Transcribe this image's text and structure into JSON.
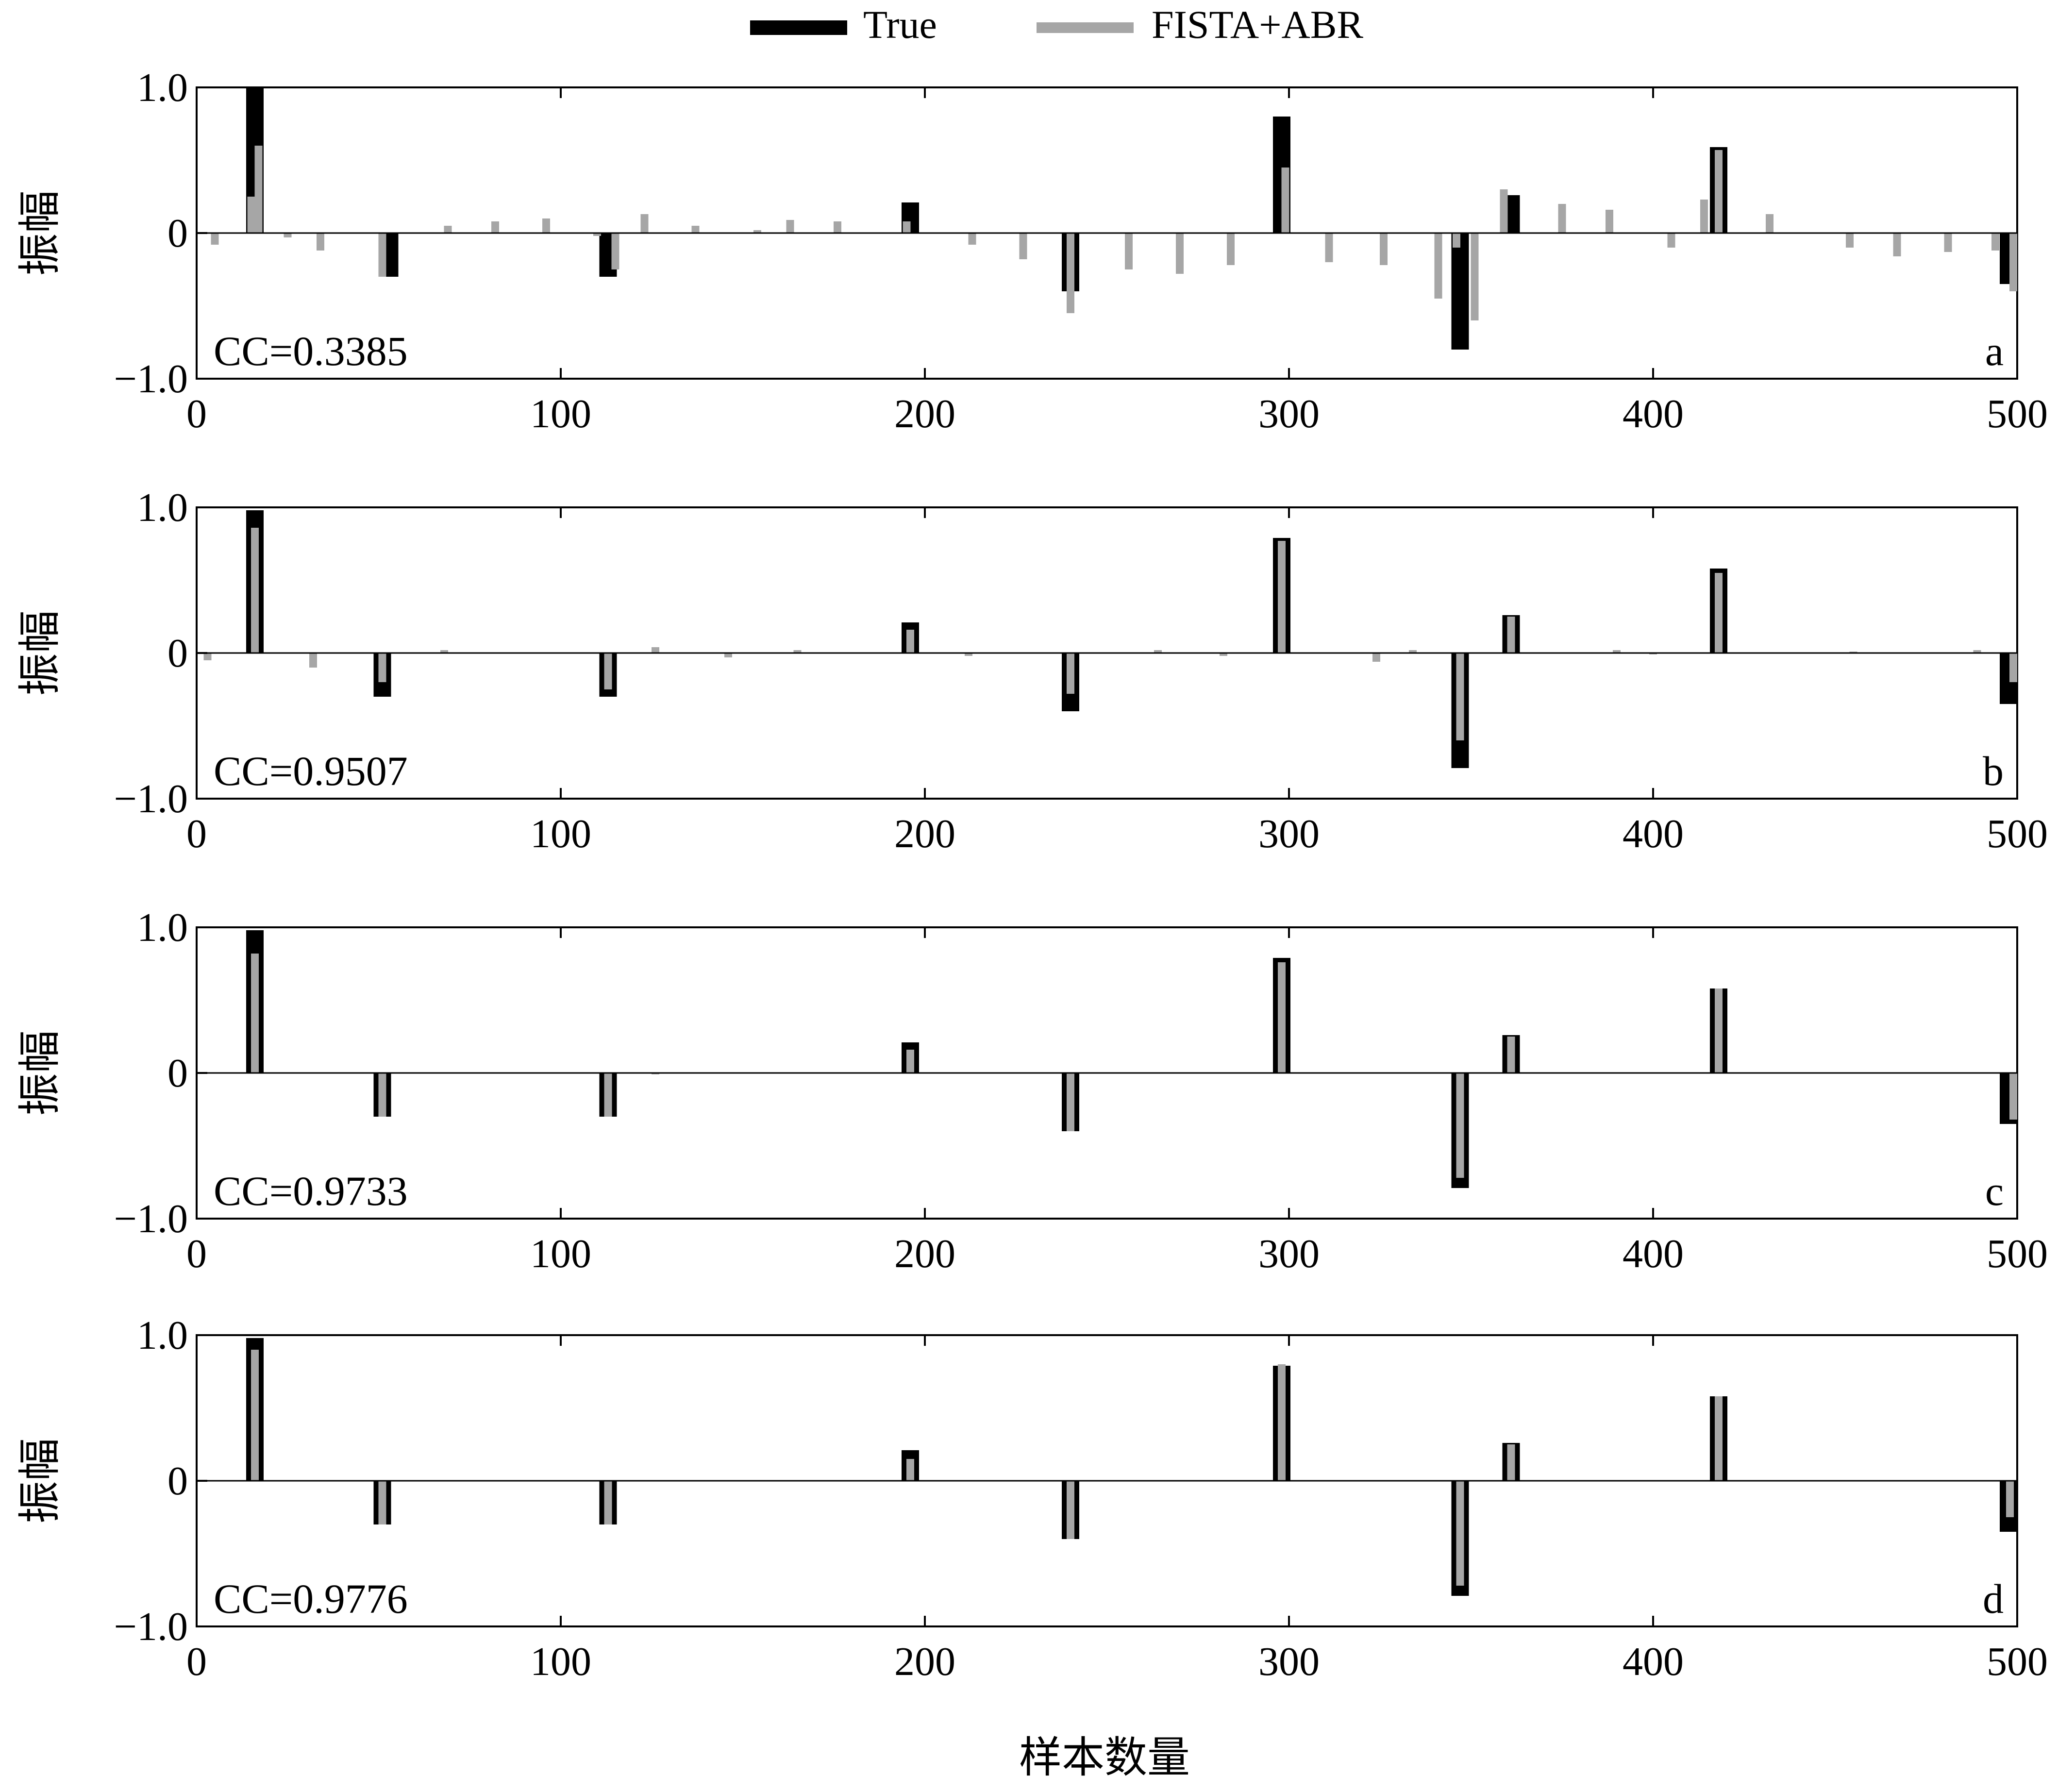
{
  "legend": {
    "entries": [
      {
        "label": "True",
        "color": "#000000"
      },
      {
        "label": "FISTA+ABR",
        "color": "#a6a6a6"
      }
    ]
  },
  "xlabel": "样本数量",
  "colors": {
    "true": "#000000",
    "estimate": "#a6a6a6",
    "axis": "#000000"
  },
  "chart_data": [
    {
      "type": "bar",
      "panel_label": "a",
      "cc_text": "CC=0.3385",
      "ylabel": "振幅",
      "xlim": [
        0,
        500
      ],
      "ylim": [
        -1.0,
        1.0
      ],
      "xticks": [
        0,
        100,
        200,
        300,
        400,
        500
      ],
      "yticks": [
        {
          "value": 1.0,
          "label": "1.0"
        },
        {
          "value": 0,
          "label": "0"
        },
        {
          "value": -1.0,
          "label": "−1.0"
        }
      ],
      "series": [
        {
          "name": "True",
          "x": [
            16,
            53,
            113,
            196,
            240,
            298,
            347,
            361,
            418,
            500
          ],
          "values": [
            1.0,
            -0.3,
            -0.3,
            0.21,
            -0.4,
            0.8,
            -0.8,
            0.26,
            0.59,
            -0.35
          ]
        },
        {
          "name": "FISTA+ABR",
          "x": [
            5,
            15,
            17,
            25,
            34,
            51,
            69,
            82,
            96,
            110,
            115,
            123,
            137,
            154,
            163,
            176,
            195,
            213,
            227,
            240,
            256,
            270,
            284,
            299,
            311,
            326,
            341,
            346,
            351,
            359,
            375,
            388,
            405,
            414,
            418,
            432,
            454,
            467,
            481,
            494,
            499
          ],
          "values": [
            -0.08,
            0.25,
            0.6,
            -0.03,
            -0.12,
            -0.3,
            0.05,
            0.08,
            0.1,
            -0.02,
            -0.25,
            0.13,
            0.05,
            0.02,
            0.09,
            0.08,
            0.08,
            -0.08,
            -0.18,
            -0.55,
            -0.25,
            -0.28,
            -0.22,
            0.45,
            -0.2,
            -0.22,
            -0.45,
            -0.1,
            -0.6,
            0.3,
            0.2,
            0.16,
            -0.1,
            0.23,
            0.57,
            0.13,
            -0.1,
            -0.16,
            -0.13,
            -0.12,
            -0.4
          ]
        }
      ]
    },
    {
      "type": "bar",
      "panel_label": "b",
      "cc_text": "CC=0.9507",
      "ylabel": "振幅",
      "xlim": [
        0,
        500
      ],
      "ylim": [
        -1.0,
        1.0
      ],
      "xticks": [
        0,
        100,
        200,
        300,
        400,
        500
      ],
      "yticks": [
        {
          "value": 1.0,
          "label": "1.0"
        },
        {
          "value": 0,
          "label": "0"
        },
        {
          "value": -1.0,
          "label": "−1.0"
        }
      ],
      "series": [
        {
          "name": "True",
          "x": [
            16,
            51,
            113,
            196,
            240,
            298,
            347,
            361,
            418,
            500
          ],
          "values": [
            0.98,
            -0.3,
            -0.3,
            0.21,
            -0.4,
            0.79,
            -0.79,
            0.26,
            0.58,
            -0.35
          ]
        },
        {
          "name": "FISTA+ABR",
          "x": [
            3,
            16,
            32,
            51,
            68,
            113,
            126,
            146,
            165,
            196,
            212,
            240,
            264,
            282,
            298,
            324,
            334,
            347,
            361,
            390,
            400,
            418,
            455,
            489,
            500
          ],
          "values": [
            -0.05,
            0.86,
            -0.1,
            -0.2,
            0.02,
            -0.25,
            0.04,
            -0.03,
            0.02,
            0.16,
            -0.02,
            -0.28,
            0.02,
            -0.02,
            0.77,
            -0.06,
            0.02,
            -0.6,
            0.25,
            0.02,
            -0.01,
            0.55,
            0.01,
            0.02,
            -0.2
          ]
        }
      ]
    },
    {
      "type": "bar",
      "panel_label": "c",
      "cc_text": "CC=0.9733",
      "ylabel": "振幅",
      "xlim": [
        0,
        500
      ],
      "ylim": [
        -1.0,
        1.0
      ],
      "xticks": [
        0,
        100,
        200,
        300,
        400,
        500
      ],
      "yticks": [
        {
          "value": 1.0,
          "label": "1.0"
        },
        {
          "value": 0,
          "label": "0"
        },
        {
          "value": -1.0,
          "label": "−1.0"
        }
      ],
      "series": [
        {
          "name": "True",
          "x": [
            16,
            51,
            113,
            196,
            240,
            298,
            347,
            361,
            418,
            500
          ],
          "values": [
            0.98,
            -0.3,
            -0.3,
            0.21,
            -0.4,
            0.79,
            -0.79,
            0.26,
            0.58,
            -0.35
          ]
        },
        {
          "name": "FISTA+ABR",
          "x": [
            16,
            51,
            113,
            126,
            196,
            240,
            298,
            347,
            361,
            418,
            500
          ],
          "values": [
            0.82,
            -0.3,
            -0.3,
            -0.01,
            0.16,
            -0.4,
            0.76,
            -0.72,
            0.25,
            0.58,
            -0.32
          ]
        }
      ]
    },
    {
      "type": "bar",
      "panel_label": "d",
      "cc_text": "CC=0.9776",
      "ylabel": "振幅",
      "xlim": [
        0,
        500
      ],
      "ylim": [
        -1.0,
        1.0
      ],
      "xticks": [
        0,
        100,
        200,
        300,
        400,
        500
      ],
      "yticks": [
        {
          "value": 1.0,
          "label": "1.0"
        },
        {
          "value": 0,
          "label": "0"
        },
        {
          "value": -1.0,
          "label": "−1.0"
        }
      ],
      "series": [
        {
          "name": "True",
          "x": [
            16,
            51,
            113,
            196,
            240,
            298,
            347,
            361,
            418,
            500
          ],
          "values": [
            0.98,
            -0.3,
            -0.3,
            0.21,
            -0.4,
            0.79,
            -0.79,
            0.26,
            0.58,
            -0.35
          ]
        },
        {
          "name": "FISTA+ABR",
          "x": [
            16,
            51,
            113,
            196,
            240,
            298,
            347,
            361,
            418,
            498
          ],
          "values": [
            0.9,
            -0.3,
            -0.3,
            0.15,
            -0.4,
            0.8,
            -0.72,
            0.25,
            0.58,
            -0.25
          ]
        }
      ]
    }
  ]
}
